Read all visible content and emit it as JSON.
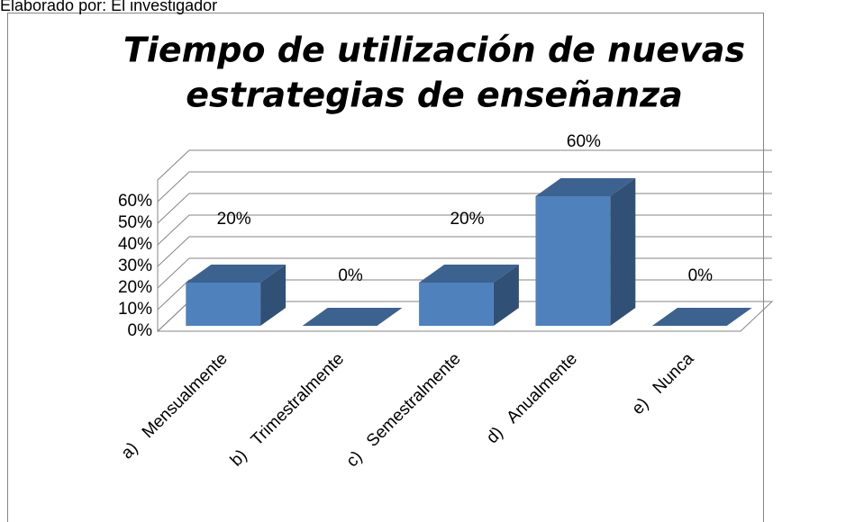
{
  "note": "Elaborado por: El investigador",
  "chart_data": {
    "type": "bar3d",
    "title": [
      "Tiempo de utilización de nuevas",
      "estrategias de enseñanza"
    ],
    "categories": [
      "a)   Mensualmente",
      "b)   Trimestralmente",
      "c)   Semestralmente",
      "d)   Anualmente",
      "e)   Nunca"
    ],
    "values": [
      20,
      0,
      20,
      60,
      0
    ],
    "value_labels": [
      "20%",
      "0%",
      "20%",
      "60%",
      "0%"
    ],
    "color": "#4f81bd",
    "ylim": [
      0,
      70
    ],
    "yticks": [
      {
        "value": 0,
        "label": "0%"
      },
      {
        "value": 10,
        "label": "10%"
      },
      {
        "value": 20,
        "label": "20%"
      },
      {
        "value": 30,
        "label": "30%"
      },
      {
        "value": 40,
        "label": "40%"
      },
      {
        "value": 50,
        "label": "50%"
      },
      {
        "value": 60,
        "label": "60%"
      }
    ],
    "grid": true
  }
}
